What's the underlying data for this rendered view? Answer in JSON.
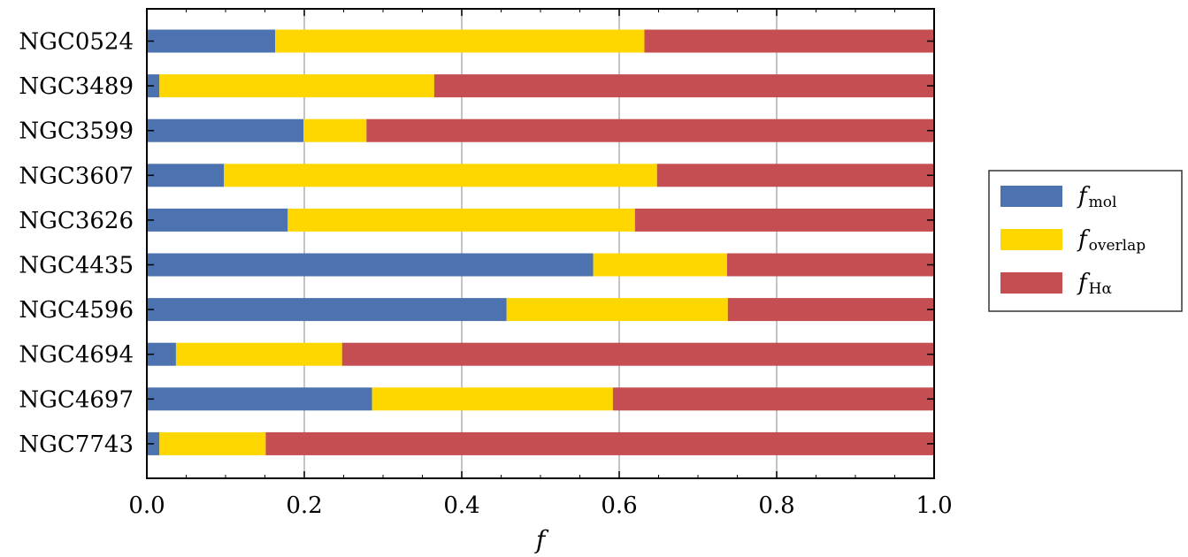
{
  "chart_data": {
    "type": "bar",
    "orientation": "horizontal",
    "stacked": true,
    "categories": [
      "NGC0524",
      "NGC3489",
      "NGC3599",
      "NGC3607",
      "NGC3626",
      "NGC4435",
      "NGC4596",
      "NGC4694",
      "NGC4697",
      "NGC7743"
    ],
    "series": [
      {
        "name": "f_mol",
        "label_main": "f",
        "label_sub": "mol",
        "color": "#4c72b0",
        "values": [
          0.163,
          0.016,
          0.199,
          0.098,
          0.179,
          0.567,
          0.457,
          0.037,
          0.286,
          0.016
        ]
      },
      {
        "name": "f_overlap",
        "label_main": "f",
        "label_sub": "overlap",
        "color": "#ffd700",
        "values": [
          0.469,
          0.349,
          0.08,
          0.55,
          0.441,
          0.17,
          0.281,
          0.211,
          0.306,
          0.135
        ]
      },
      {
        "name": "f_Hα",
        "label_main": "f",
        "label_sub": "Hα",
        "color": "#c44e52",
        "values": [
          0.368,
          0.635,
          0.721,
          0.352,
          0.38,
          0.263,
          0.262,
          0.752,
          0.408,
          0.849
        ]
      }
    ],
    "xlabel": "f",
    "xlim": [
      0,
      1
    ],
    "xticks": [
      "0.0",
      "0.2",
      "0.4",
      "0.6",
      "0.8",
      "1.0"
    ],
    "grid": "vertical",
    "legend_position": "right"
  }
}
